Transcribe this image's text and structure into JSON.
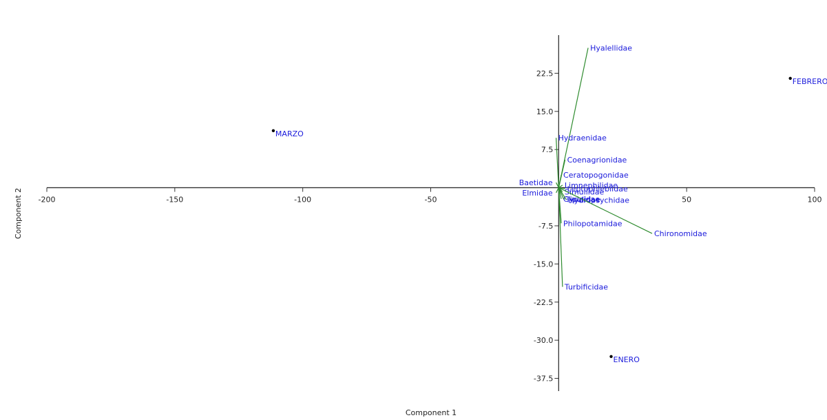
{
  "chart_data": {
    "type": "scatter",
    "title": "",
    "xlabel": "Component 1",
    "ylabel": "Component 2",
    "xlim": [
      -200,
      100
    ],
    "ylim": [
      -40,
      30
    ],
    "x_ticks": [
      -200,
      -150,
      -100,
      -50,
      50,
      100
    ],
    "y_ticks": [
      22.5,
      15.0,
      7.5,
      -7.5,
      -15.0,
      -22.5,
      -30.0,
      -37.5
    ],
    "y_tick_labels": [
      "22.5",
      "15.0",
      "7.5",
      "-7.5",
      "-15.0",
      "-22.5",
      "-30.0",
      "-37.5"
    ],
    "grid": false,
    "points": [
      {
        "label": "FEBRERO",
        "x": 90.5,
        "y": 21.5
      },
      {
        "label": "MARZO",
        "x": -111.5,
        "y": 11.2
      },
      {
        "label": "ENERO",
        "x": 20.5,
        "y": -33.2
      }
    ],
    "vectors": [
      {
        "label": "Hyalellidae",
        "x": 11.5,
        "y": 27.5
      },
      {
        "label": "Hydraenidae",
        "x": -1.0,
        "y": 9.8
      },
      {
        "label": "Coenagrionidae",
        "x": 2.5,
        "y": 5.5
      },
      {
        "label": "Ceratopogonidae",
        "x": 1.0,
        "y": 2.5
      },
      {
        "label": "Baetidae",
        "x": -1.0,
        "y": 1.0
      },
      {
        "label": "Limnephilidae",
        "x": 1.5,
        "y": 0.5
      },
      {
        "label": "Leptophlebiidae",
        "x": 2.5,
        "y": -0.2
      },
      {
        "label": "Elmidae",
        "x": -1.0,
        "y": -1.0
      },
      {
        "label": "Simuliidae",
        "x": 1.5,
        "y": -0.8
      },
      {
        "label": "Gyrinidae",
        "x": 1.0,
        "y": -2.2
      },
      {
        "label": "Tipulidae",
        "x": 2.0,
        "y": -2.3
      },
      {
        "label": "Hydropsychidae",
        "x": 3.0,
        "y": -2.4
      },
      {
        "label": "Chironomidae",
        "x": 36.5,
        "y": -9.0
      },
      {
        "label": "Philopotamidae",
        "x": 1.0,
        "y": -7.0
      },
      {
        "label": "Turbificidae",
        "x": 1.5,
        "y": -19.5
      }
    ],
    "colors": {
      "axis": "#333333",
      "vector": "#2e8b2e",
      "label": "#1a1adb",
      "point": "#000000"
    }
  }
}
